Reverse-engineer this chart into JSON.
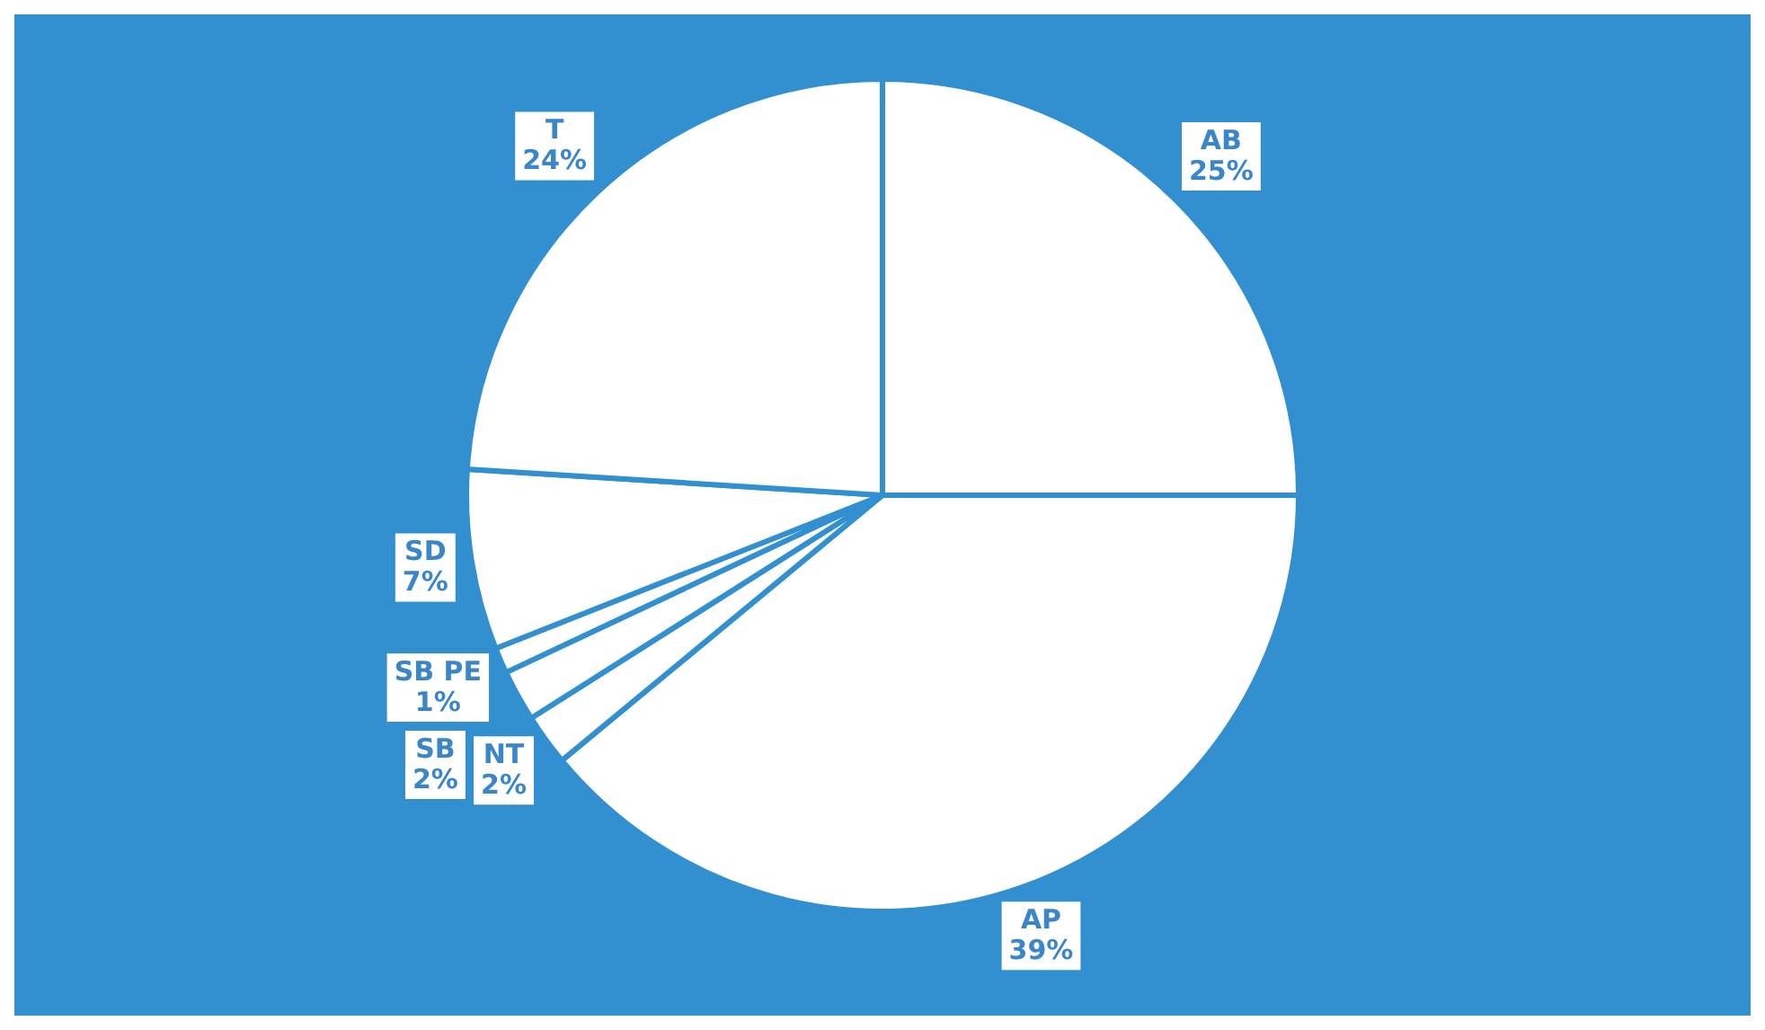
{
  "chart_data": {
    "type": "pie",
    "categories": [
      "AB",
      "AP",
      "NT",
      "SB",
      "SB PE",
      "SD",
      "T"
    ],
    "values": [
      25,
      39,
      2,
      2,
      1,
      7,
      24
    ],
    "colors": [
      "#ffffff",
      "#ffffff",
      "#ffffff",
      "#ffffff",
      "#ffffff",
      "#ffffff",
      "#ffffff"
    ],
    "value_labels": [
      "25%",
      "39%",
      "2%",
      "2%",
      "1%",
      "7%",
      "24%"
    ],
    "legend": false
  }
}
